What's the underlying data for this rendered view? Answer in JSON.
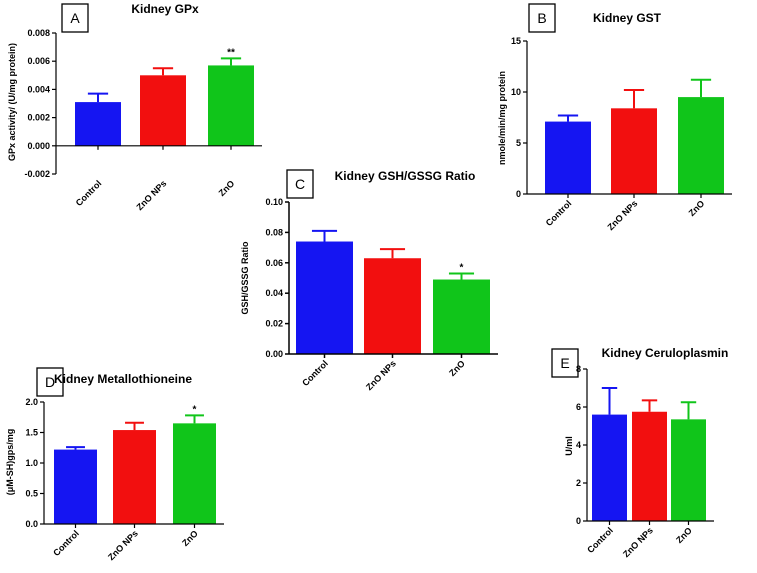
{
  "chart_data": [
    {
      "id": "A",
      "type": "bar",
      "title": "Kidney GPx",
      "ylabel": "GPx activity/ (U/mg protein)",
      "categories": [
        "Control",
        "ZnO NPs",
        "ZnO"
      ],
      "values": [
        0.0031,
        0.005,
        0.0057
      ],
      "errors": [
        0.0006,
        0.0005,
        0.0005
      ],
      "annotations": [
        "",
        "",
        "**"
      ],
      "ylim": [
        -0.002,
        0.008
      ],
      "yticks": [
        -0.002,
        0.0,
        0.002,
        0.004,
        0.006,
        0.008
      ],
      "ytick_labels": [
        "-0.002",
        "0.000",
        "0.002",
        "0.004",
        "0.006",
        "0.008"
      ],
      "colors": [
        "#1515f2",
        "#f20f0f",
        "#10c51a"
      ]
    },
    {
      "id": "B",
      "type": "bar",
      "title": "Kidney GST",
      "ylabel": "nmole/min/mg protein",
      "categories": [
        "Control",
        "ZnO NPs",
        "ZnO"
      ],
      "values": [
        7.1,
        8.4,
        9.5
      ],
      "errors": [
        0.6,
        1.8,
        1.7
      ],
      "annotations": [
        "",
        "",
        ""
      ],
      "ylim": [
        0,
        15
      ],
      "yticks": [
        0,
        5,
        10,
        15
      ],
      "ytick_labels": [
        "0",
        "5",
        "10",
        "15"
      ],
      "colors": [
        "#1515f2",
        "#f20f0f",
        "#10c51a"
      ]
    },
    {
      "id": "C",
      "type": "bar",
      "title": "Kidney GSH/GSSG Ratio",
      "ylabel": "GSH/GSSG Ratio",
      "categories": [
        "Control",
        "ZnO NPs",
        "ZnO"
      ],
      "values": [
        0.074,
        0.063,
        0.049
      ],
      "errors": [
        0.007,
        0.006,
        0.004
      ],
      "annotations": [
        "",
        "",
        "*"
      ],
      "ylim": [
        0,
        0.1
      ],
      "yticks": [
        0,
        0.02,
        0.04,
        0.06,
        0.08,
        0.1
      ],
      "ytick_labels": [
        "0.00",
        "0.02",
        "0.04",
        "0.06",
        "0.08",
        "0.10"
      ],
      "colors": [
        "#1515f2",
        "#f20f0f",
        "#10c51a"
      ]
    },
    {
      "id": "D",
      "type": "bar",
      "title": "Kidney Metallothioneine",
      "ylabel": "(μM-SH)gps/mg",
      "categories": [
        "Control",
        "ZnO NPs",
        "ZnO"
      ],
      "values": [
        1.22,
        1.54,
        1.65
      ],
      "errors": [
        0.04,
        0.12,
        0.13
      ],
      "annotations": [
        "",
        "",
        "*"
      ],
      "ylim": [
        0,
        2
      ],
      "yticks": [
        0,
        0.5,
        1,
        1.5,
        2
      ],
      "ytick_labels": [
        "0.0",
        "0.5",
        "1.0",
        "1.5",
        "2.0"
      ],
      "colors": [
        "#1515f2",
        "#f20f0f",
        "#10c51a"
      ]
    },
    {
      "id": "E",
      "type": "bar",
      "title": "Kidney Ceruloplasmin",
      "ylabel": "U/ml",
      "categories": [
        "Control",
        "ZnO NPs",
        "ZnO"
      ],
      "values": [
        5.6,
        5.75,
        5.35
      ],
      "errors": [
        1.4,
        0.6,
        0.9
      ],
      "annotations": [
        "",
        "",
        ""
      ],
      "ylim": [
        0,
        8
      ],
      "yticks": [
        0,
        2,
        4,
        6,
        8
      ],
      "ytick_labels": [
        "0",
        "2",
        "4",
        "6",
        "8"
      ],
      "colors": [
        "#1515f2",
        "#f20f0f",
        "#10c51a"
      ]
    }
  ]
}
